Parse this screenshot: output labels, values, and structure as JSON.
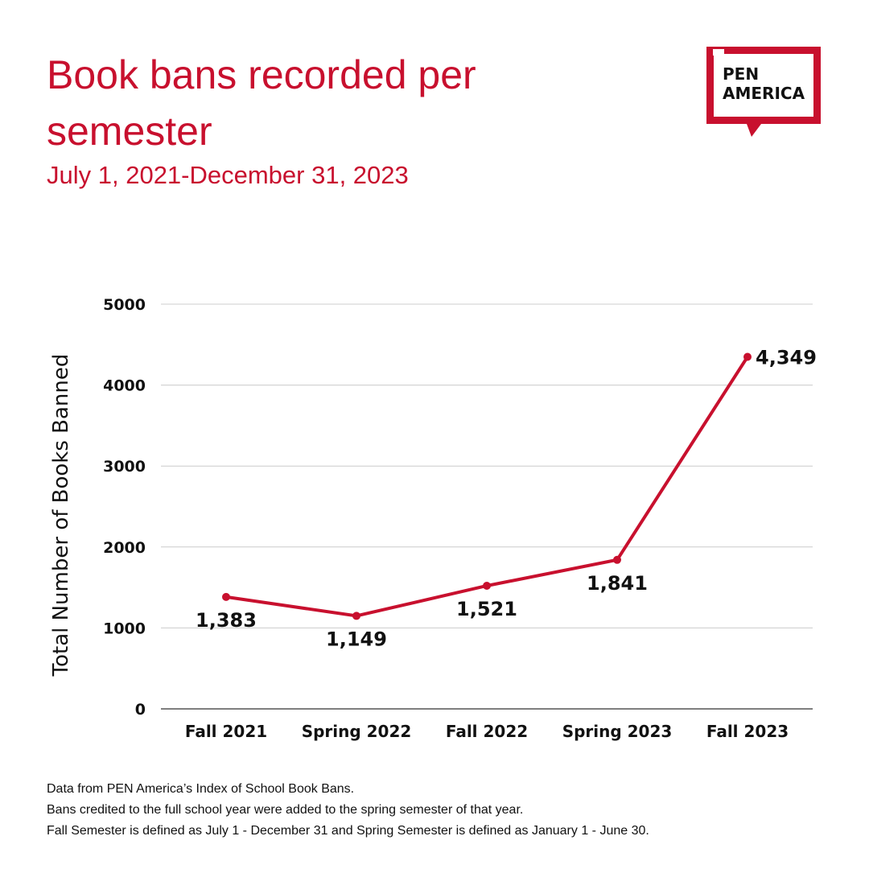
{
  "header": {
    "title": "Book bans recorded per semester",
    "subtitle": "July 1, 2021-December 31, 2023"
  },
  "logo": {
    "line1": "PEN",
    "line2": "AMERICA",
    "brand_color": "#c8102e"
  },
  "chart_data": {
    "type": "line",
    "categories": [
      "Fall 2021",
      "Spring 2022",
      "Fall 2022",
      "Spring 2023",
      "Fall 2023"
    ],
    "series": [
      {
        "values": [
          1383,
          1149,
          1521,
          1841,
          4349
        ],
        "labels": [
          "1,383",
          "1,149",
          "1,521",
          "1,841",
          "4,349"
        ],
        "color": "#c8102e"
      }
    ],
    "ylabel": "Total Number of Books Banned",
    "xlabel": "",
    "ylim": [
      0,
      5000
    ],
    "yticks": [
      0,
      1000,
      2000,
      3000,
      4000,
      5000
    ],
    "grid": true,
    "legend": "none"
  },
  "footnotes": [
    "Data from PEN America’s Index of School Book Bans.",
    "Bans credited to the full school year were added to the spring semester of that year.",
    "Fall Semester is defined as July 1 - December 31 and Spring Semester is defined as January 1 - June 30."
  ]
}
